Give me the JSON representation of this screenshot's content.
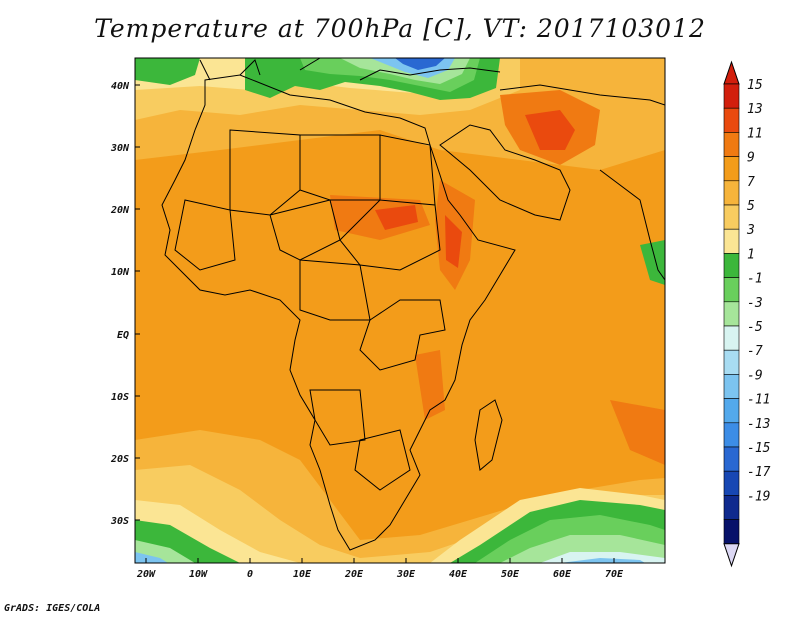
{
  "title": "Temperature at 700hPa [C], VT: 2017103012",
  "credit": "GrADS: IGES/COLA",
  "colors": {
    "background": "#ffffff",
    "border": "#000000"
  },
  "axes": {
    "lat_labels": [
      "40N",
      "30N",
      "20N",
      "10N",
      "EQ",
      "10S",
      "20S",
      "30S"
    ],
    "lon_labels": [
      "20W",
      "10W",
      "0",
      "10E",
      "20E",
      "30E",
      "40E",
      "50E",
      "60E",
      "70E"
    ]
  },
  "colorbar": {
    "levels": [
      "15",
      "13",
      "11",
      "9",
      "7",
      "5",
      "3",
      "1",
      "-1",
      "-3",
      "-5",
      "-7",
      "-9",
      "-11",
      "-13",
      "-15",
      "-17",
      "-19"
    ],
    "colors": [
      "#d21f0d",
      "#ea4a0e",
      "#f07a12",
      "#f39c1a",
      "#f6b43b",
      "#f8cc60",
      "#fbe594",
      "#3cb73b",
      "#69cf5c",
      "#a6e59a",
      "#d8f4f1",
      "#a8dcf2",
      "#7cc4f0",
      "#53a9ec",
      "#3c8de6",
      "#2968d2",
      "#1747b3",
      "#0f2a8e",
      "#08126a"
    ],
    "top_arrow_color": "#d21f0d",
    "bottom_arrow_color": "#dcd8f4"
  }
}
